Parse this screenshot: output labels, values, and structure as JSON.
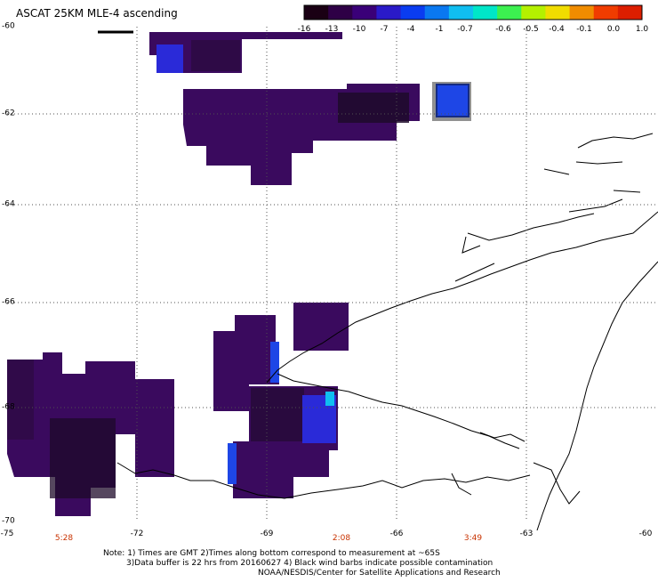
{
  "title": "ASCAT 25KM MLE-4 ascending",
  "colorbar": {
    "labels": [
      "-16",
      "-13",
      "-10",
      "-7",
      "-4",
      "-1",
      "-0.7",
      "-0.6",
      "-0.5",
      "-0.4",
      "-0.1",
      "0.0",
      "1.0"
    ],
    "colors": [
      "#1a0014",
      "#2e0046",
      "#3a0078",
      "#2a1ac8",
      "#0a3cf0",
      "#0a78f0",
      "#10bef0",
      "#00e6c8",
      "#3cf050",
      "#b4f000",
      "#f0dc00",
      "#f08c00",
      "#f03c00",
      "#dc1e00"
    ]
  },
  "map": {
    "lat_labels": [
      "-60",
      "-62",
      "-64",
      "-66",
      "-68",
      "-70"
    ],
    "lon_labels": [
      "-75",
      "-72",
      "-69",
      "-66",
      "-63",
      "-60"
    ],
    "time_labels": [
      "5:28",
      "2:08",
      "3:49"
    ],
    "colors": {
      "grid": "#505050",
      "coast": "#000000",
      "time": "#c83200",
      "field_dark": "#1e0a2a",
      "field_mid": "#3a0a5e",
      "field_purple": "#4a1478",
      "field_blue": "#1e46e6"
    }
  },
  "notes": [
    "Note: 1) Times are GMT 2)Times along bottom correspond to measurement at ~65S",
    "3)Data buffer is 22 hrs from 20160627 4) Black wind barbs indicate possible contamination",
    "NOAA/NESDIS/Center for Satellite Applications and Research"
  ]
}
